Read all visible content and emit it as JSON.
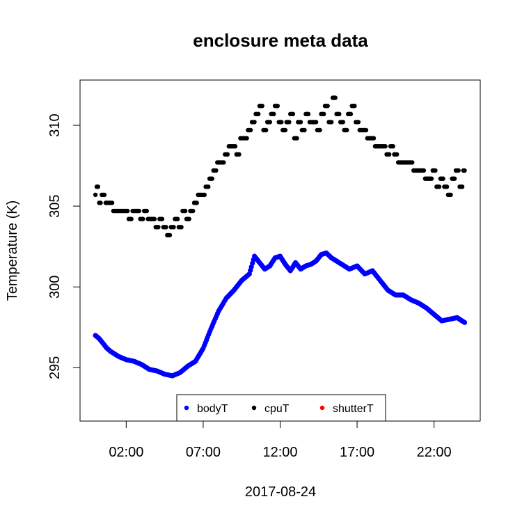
{
  "chart_data": {
    "type": "scatter",
    "title": "enclosure meta data",
    "xlabel": "2017-08-24",
    "ylabel": "Temperature (K)",
    "xlim": [
      "2017-08-23T23:00",
      "2017-08-25T01:00"
    ],
    "ylim": [
      291.7,
      312.8
    ],
    "x_ticks": [
      {
        "label": "02:00",
        "time": "2017-08-24T02:00"
      },
      {
        "label": "07:00",
        "time": "2017-08-24T07:00"
      },
      {
        "label": "12:00",
        "time": "2017-08-24T12:00"
      },
      {
        "label": "17:00",
        "time": "2017-08-24T17:00"
      },
      {
        "label": "22:00",
        "time": "2017-08-24T22:00"
      }
    ],
    "y_ticks": [
      295,
      300,
      305,
      310
    ],
    "legend_position": "bottom-center",
    "grid": false,
    "series": [
      {
        "name": "bodyT",
        "color": "#0000ff",
        "x": [
          "2017-08-24T00:00",
          "2017-08-24T00:15",
          "2017-08-24T00:30",
          "2017-08-24T00:45",
          "2017-08-24T01:00",
          "2017-08-24T01:30",
          "2017-08-24T02:00",
          "2017-08-24T02:30",
          "2017-08-24T03:00",
          "2017-08-24T03:30",
          "2017-08-24T04:00",
          "2017-08-24T04:30",
          "2017-08-24T05:00",
          "2017-08-24T05:30",
          "2017-08-24T06:00",
          "2017-08-24T06:30",
          "2017-08-24T07:00",
          "2017-08-24T07:30",
          "2017-08-24T08:00",
          "2017-08-24T08:30",
          "2017-08-24T09:00",
          "2017-08-24T09:30",
          "2017-08-24T10:00",
          "2017-08-24T10:20",
          "2017-08-24T10:40",
          "2017-08-24T11:00",
          "2017-08-24T11:20",
          "2017-08-24T11:40",
          "2017-08-24T12:00",
          "2017-08-24T12:20",
          "2017-08-24T12:40",
          "2017-08-24T13:00",
          "2017-08-24T13:20",
          "2017-08-24T13:40",
          "2017-08-24T14:00",
          "2017-08-24T14:20",
          "2017-08-24T14:40",
          "2017-08-24T15:00",
          "2017-08-24T15:20",
          "2017-08-24T15:40",
          "2017-08-24T16:00",
          "2017-08-24T16:30",
          "2017-08-24T17:00",
          "2017-08-24T17:30",
          "2017-08-24T18:00",
          "2017-08-24T18:30",
          "2017-08-24T19:00",
          "2017-08-24T19:30",
          "2017-08-24T20:00",
          "2017-08-24T20:30",
          "2017-08-24T21:00",
          "2017-08-24T21:30",
          "2017-08-24T22:00",
          "2017-08-24T22:30",
          "2017-08-24T23:00",
          "2017-08-24T23:30",
          "2017-08-24T23:59"
        ],
        "y": [
          297.0,
          296.8,
          296.5,
          296.2,
          296.0,
          295.7,
          295.5,
          295.4,
          295.2,
          294.9,
          294.8,
          294.6,
          294.5,
          294.7,
          295.1,
          295.4,
          296.2,
          297.4,
          298.5,
          299.3,
          299.8,
          300.4,
          300.8,
          301.9,
          301.5,
          301.1,
          301.3,
          301.8,
          301.9,
          301.4,
          301.0,
          301.5,
          301.1,
          301.3,
          301.4,
          301.6,
          302.0,
          302.1,
          301.8,
          301.6,
          301.4,
          301.1,
          301.3,
          300.8,
          301.0,
          300.4,
          299.8,
          299.5,
          299.5,
          299.2,
          299.0,
          298.7,
          298.3,
          297.9,
          298.0,
          298.1,
          297.8
        ]
      },
      {
        "name": "cpuT",
        "color": "#000000",
        "x": [
          "2017-08-24T00:00",
          "2017-08-24T00:10",
          "2017-08-24T00:20",
          "2017-08-24T00:30",
          "2017-08-24T00:45",
          "2017-08-24T01:00",
          "2017-08-24T01:15",
          "2017-08-24T01:30",
          "2017-08-24T01:45",
          "2017-08-24T02:00",
          "2017-08-24T02:15",
          "2017-08-24T02:30",
          "2017-08-24T02:45",
          "2017-08-24T03:00",
          "2017-08-24T03:15",
          "2017-08-24T03:30",
          "2017-08-24T03:45",
          "2017-08-24T04:00",
          "2017-08-24T04:15",
          "2017-08-24T04:30",
          "2017-08-24T04:45",
          "2017-08-24T05:00",
          "2017-08-24T05:15",
          "2017-08-24T05:30",
          "2017-08-24T05:45",
          "2017-08-24T06:00",
          "2017-08-24T06:15",
          "2017-08-24T06:30",
          "2017-08-24T06:45",
          "2017-08-24T07:00",
          "2017-08-24T07:15",
          "2017-08-24T07:30",
          "2017-08-24T07:45",
          "2017-08-24T08:00",
          "2017-08-24T08:15",
          "2017-08-24T08:30",
          "2017-08-24T08:45",
          "2017-08-24T09:00",
          "2017-08-24T09:15",
          "2017-08-24T09:30",
          "2017-08-24T09:45",
          "2017-08-24T10:00",
          "2017-08-24T10:15",
          "2017-08-24T10:30",
          "2017-08-24T10:45",
          "2017-08-24T11:00",
          "2017-08-24T11:15",
          "2017-08-24T11:30",
          "2017-08-24T11:45",
          "2017-08-24T12:00",
          "2017-08-24T12:15",
          "2017-08-24T12:30",
          "2017-08-24T12:45",
          "2017-08-24T13:00",
          "2017-08-24T13:15",
          "2017-08-24T13:30",
          "2017-08-24T13:45",
          "2017-08-24T14:00",
          "2017-08-24T14:15",
          "2017-08-24T14:30",
          "2017-08-24T14:45",
          "2017-08-24T15:00",
          "2017-08-24T15:15",
          "2017-08-24T15:30",
          "2017-08-24T15:45",
          "2017-08-24T16:00",
          "2017-08-24T16:15",
          "2017-08-24T16:30",
          "2017-08-24T16:45",
          "2017-08-24T17:00",
          "2017-08-24T17:15",
          "2017-08-24T17:30",
          "2017-08-24T17:45",
          "2017-08-24T18:00",
          "2017-08-24T18:15",
          "2017-08-24T18:30",
          "2017-08-24T18:45",
          "2017-08-24T19:00",
          "2017-08-24T19:15",
          "2017-08-24T19:30",
          "2017-08-24T19:45",
          "2017-08-24T20:00",
          "2017-08-24T20:15",
          "2017-08-24T20:30",
          "2017-08-24T20:45",
          "2017-08-24T21:00",
          "2017-08-24T21:15",
          "2017-08-24T21:30",
          "2017-08-24T21:45",
          "2017-08-24T22:00",
          "2017-08-24T22:15",
          "2017-08-24T22:30",
          "2017-08-24T22:45",
          "2017-08-24T23:00",
          "2017-08-24T23:15",
          "2017-08-24T23:30",
          "2017-08-24T23:45",
          "2017-08-24T23:59"
        ],
        "y": [
          305.7,
          306.2,
          305.2,
          305.7,
          305.2,
          305.2,
          304.7,
          304.7,
          304.7,
          304.7,
          304.2,
          304.7,
          304.7,
          304.2,
          304.7,
          304.2,
          304.2,
          303.7,
          304.2,
          303.7,
          303.2,
          303.7,
          304.2,
          303.7,
          304.7,
          304.2,
          304.7,
          305.2,
          305.7,
          305.7,
          306.2,
          306.7,
          307.2,
          307.7,
          307.7,
          308.2,
          308.7,
          308.7,
          308.2,
          309.2,
          309.2,
          309.7,
          310.2,
          310.7,
          311.2,
          309.7,
          310.2,
          310.7,
          311.2,
          310.2,
          309.7,
          310.2,
          310.7,
          309.2,
          310.2,
          309.7,
          310.7,
          310.2,
          310.2,
          309.7,
          310.7,
          311.2,
          310.2,
          311.7,
          310.7,
          310.2,
          309.7,
          310.7,
          311.2,
          310.2,
          309.7,
          309.7,
          309.2,
          309.2,
          308.7,
          308.7,
          308.7,
          308.2,
          308.7,
          308.2,
          307.7,
          307.7,
          307.7,
          307.7,
          307.2,
          307.2,
          307.2,
          306.7,
          306.7,
          307.2,
          306.2,
          306.7,
          306.2,
          305.7,
          306.7,
          307.2,
          306.2,
          307.2
        ]
      },
      {
        "name": "shutterT",
        "color": "#ff0000",
        "x": [],
        "y": []
      }
    ]
  }
}
